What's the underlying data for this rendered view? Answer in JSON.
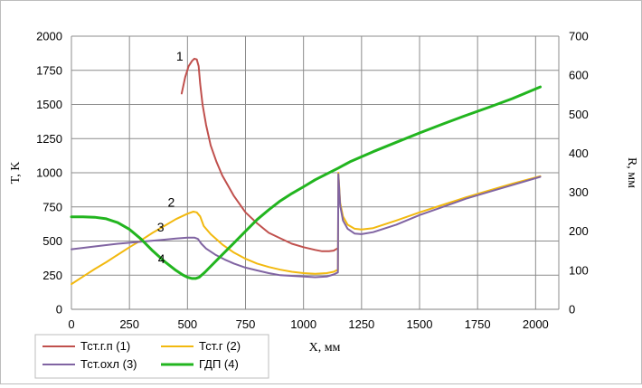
{
  "chart_data": {
    "type": "line",
    "xlabel": "X, мм",
    "ylabel": "T, K",
    "y2label": "R, мм",
    "xlim": [
      0,
      2100
    ],
    "ylim": [
      0,
      2000
    ],
    "y2lim": [
      0,
      700
    ],
    "grid": true,
    "legend_position": "bottom-left",
    "x_ticks": [
      "0",
      "250",
      "500",
      "750",
      "1000",
      "1250",
      "1500",
      "1750",
      "2000"
    ],
    "y_ticks": [
      "0",
      "250",
      "500",
      "750",
      "1000",
      "1250",
      "1500",
      "1750",
      "2000"
    ],
    "y2_ticks": [
      "0",
      "100",
      "200",
      "300",
      "400",
      "500",
      "600",
      "700"
    ],
    "series": [
      {
        "name": "Тст.г.п (1)",
        "label": "1",
        "axis": "left",
        "color": "#c0504d",
        "x": [
          475,
          490,
          505,
          520,
          530,
          540,
          548,
          555,
          565,
          580,
          600,
          625,
          650,
          700,
          750,
          800,
          850,
          900,
          950,
          1000,
          1050,
          1080,
          1110,
          1130,
          1145
        ],
        "y": [
          1580,
          1700,
          1780,
          1820,
          1835,
          1830,
          1780,
          1650,
          1500,
          1350,
          1200,
          1080,
          980,
          830,
          710,
          630,
          560,
          520,
          480,
          455,
          435,
          425,
          425,
          430,
          445
        ]
      },
      {
        "name": "Тст.г (2)",
        "label": "2",
        "axis": "left",
        "color": "#f2b90f",
        "x": [
          0,
          50,
          100,
          150,
          200,
          250,
          300,
          350,
          400,
          450,
          500,
          525,
          540,
          555,
          570,
          600,
          650,
          700,
          750,
          800,
          850,
          900,
          950,
          1000,
          1050,
          1100,
          1130,
          1148,
          1150,
          1158,
          1170,
          1190,
          1220,
          1250,
          1300,
          1400,
          1500,
          1600,
          1700,
          1800,
          1900,
          2020
        ],
        "y": [
          185,
          240,
          295,
          345,
          400,
          455,
          505,
          560,
          610,
          660,
          700,
          715,
          710,
          680,
          610,
          550,
          475,
          415,
          370,
          335,
          310,
          290,
          275,
          265,
          260,
          265,
          275,
          290,
          1000,
          780,
          680,
          620,
          590,
          585,
          595,
          650,
          710,
          765,
          820,
          870,
          920,
          975
        ]
      },
      {
        "name": "Тст.охл (3)",
        "label": "3",
        "axis": "left",
        "color": "#8064a2",
        "x": [
          0,
          100,
          200,
          300,
          400,
          450,
          500,
          530,
          545,
          560,
          580,
          620,
          660,
          700,
          750,
          800,
          850,
          900,
          950,
          1000,
          1050,
          1100,
          1130,
          1148,
          1150,
          1158,
          1170,
          1190,
          1220,
          1250,
          1300,
          1400,
          1500,
          1600,
          1700,
          1800,
          1900,
          2020
        ],
        "y": [
          440,
          460,
          480,
          495,
          510,
          518,
          525,
          525,
          515,
          480,
          445,
          400,
          365,
          335,
          305,
          285,
          265,
          250,
          245,
          240,
          235,
          240,
          255,
          270,
          990,
          760,
          650,
          590,
          555,
          550,
          565,
          620,
          690,
          750,
          810,
          860,
          910,
          970
        ]
      },
      {
        "name": "ГДП (4)",
        "label": "4",
        "axis": "right",
        "color": "#22b51f",
        "x": [
          0,
          50,
          100,
          150,
          200,
          250,
          300,
          350,
          400,
          450,
          480,
          500,
          520,
          535,
          550,
          575,
          600,
          650,
          700,
          750,
          800,
          850,
          900,
          950,
          1000,
          1050,
          1100,
          1150,
          1200,
          1300,
          1400,
          1500,
          1600,
          1700,
          1800,
          1900,
          2020
        ],
        "y": [
          237,
          237,
          236,
          232,
          222,
          205,
          180,
          150,
          123,
          100,
          88,
          82,
          79,
          79,
          82,
          95,
          110,
          140,
          170,
          200,
          230,
          255,
          278,
          297,
          314,
          332,
          347,
          362,
          378,
          404,
          428,
          452,
          475,
          497,
          518,
          540,
          570
        ]
      }
    ]
  }
}
